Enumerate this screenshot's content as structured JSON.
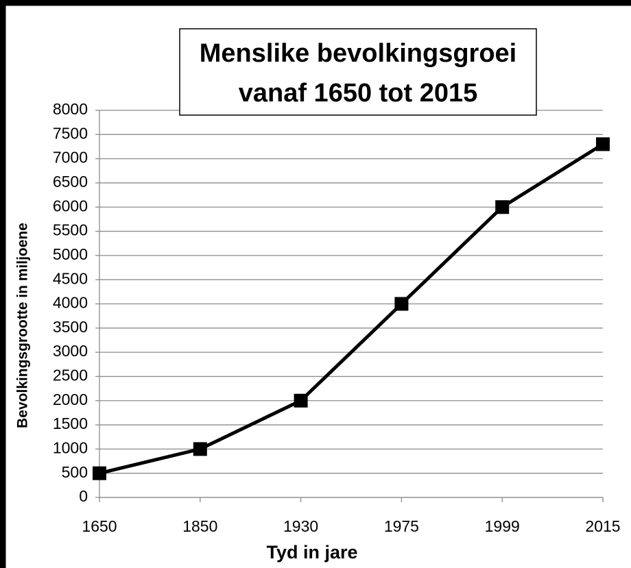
{
  "chart_data": {
    "type": "line",
    "title": [
      "Menslike bevolkingsgroei",
      "vanaf 1650 tot 2015"
    ],
    "x_label": "Tyd in jare",
    "y_label": "Bevolkingsgrootte in miljoene",
    "categories": [
      "1650",
      "1850",
      "1930",
      "1975",
      "1999",
      "2015"
    ],
    "series": [
      {
        "color": "#000000",
        "values": [
          500,
          1000,
          2000,
          4000,
          6000,
          7300
        ]
      }
    ],
    "ylim": [
      0,
      8000
    ],
    "yticks": [
      0,
      500,
      1000,
      1500,
      2000,
      2500,
      3000,
      3500,
      4000,
      4500,
      5000,
      5500,
      6000,
      6500,
      7000,
      7500,
      8000
    ],
    "grid": true
  }
}
